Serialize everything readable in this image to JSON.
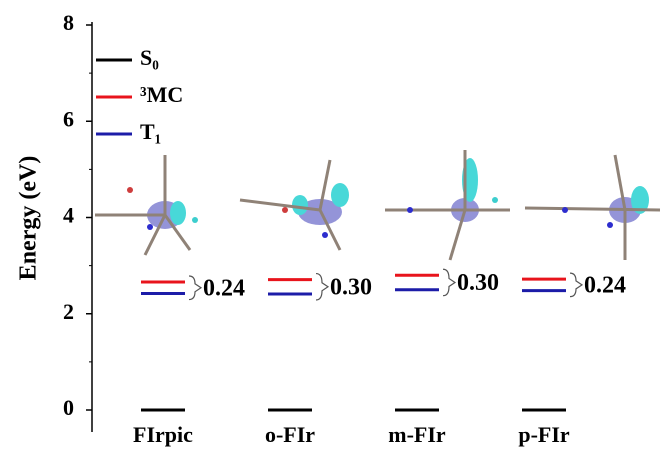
{
  "chart_data": {
    "type": "energy-level",
    "y_label": "Energy (eV)",
    "categories": [
      "FIrpic",
      "o-FIr",
      "m-FIr",
      "p-FIr"
    ],
    "series": [
      {
        "name": "S₀",
        "color": "#000000",
        "values": [
          0,
          0,
          0,
          0
        ]
      },
      {
        "name": "³MC",
        "color": "#e8141c",
        "values": [
          2.66,
          2.71,
          2.8,
          2.72
        ]
      },
      {
        "name": "T₁",
        "color": "#1c1ca8",
        "values": [
          2.42,
          2.41,
          2.5,
          2.48
        ]
      }
    ],
    "annotations": [
      "0.24",
      "0.30",
      "0.30",
      "0.24"
    ],
    "ylim": [
      0,
      8
    ],
    "yticks": [
      0,
      2,
      4,
      6,
      8
    ],
    "yminorticks": [
      1,
      3,
      5,
      7
    ],
    "legend": "upper-left"
  }
}
